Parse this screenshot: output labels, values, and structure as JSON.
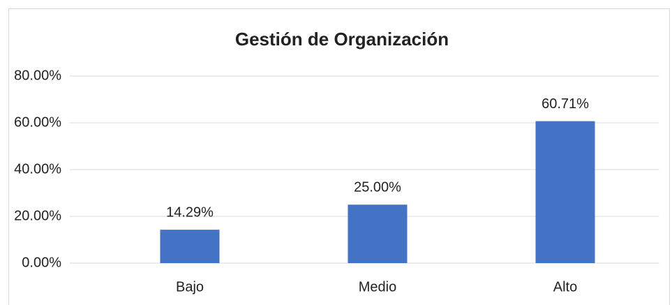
{
  "chart_data": {
    "type": "bar",
    "title": "Gestión de Organización",
    "categories": [
      "Bajo",
      "Medio",
      "Alto"
    ],
    "values": [
      14.29,
      25.0,
      60.71
    ],
    "value_labels": [
      "14.29%",
      "25.00%",
      "60.71%"
    ],
    "color": "#4472c4",
    "ylim": [
      0,
      80
    ],
    "yticks": [
      {
        "value": 0,
        "label": "0.00%"
      },
      {
        "value": 20,
        "label": "20.00%"
      },
      {
        "value": 40,
        "label": "40.00%"
      },
      {
        "value": 60,
        "label": "60.00%"
      },
      {
        "value": 80,
        "label": "80.00%"
      }
    ],
    "grid": true
  }
}
